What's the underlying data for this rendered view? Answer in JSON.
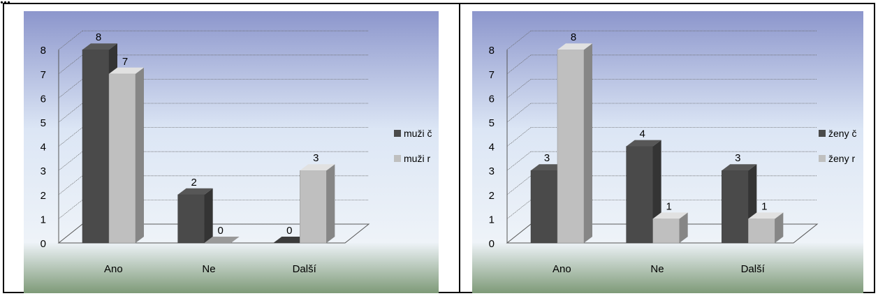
{
  "heading": "...",
  "chart_data": [
    {
      "type": "bar",
      "categories": [
        "Ano",
        "Ne",
        "Další"
      ],
      "series": [
        {
          "name": "muži č",
          "values": [
            8,
            2,
            0
          ],
          "color": "#4a4a4a"
        },
        {
          "name": "muži r",
          "values": [
            7,
            0,
            3
          ],
          "color": "#bfbfbf"
        }
      ],
      "yticks": [
        "0",
        "1",
        "2",
        "3",
        "4",
        "5",
        "6",
        "7",
        "8"
      ],
      "ylim": [
        0,
        8
      ],
      "data_labels": true,
      "grid": true,
      "legend_position": "right",
      "style": "3d-clustered-column",
      "background": [
        "#8c96cc",
        "#dce6f5",
        "#eef3f8",
        "#7e9a78"
      ]
    },
    {
      "type": "bar",
      "categories": [
        "Ano",
        "Ne",
        "Další"
      ],
      "series": [
        {
          "name": "ženy č",
          "values": [
            3,
            4,
            3
          ],
          "color": "#4a4a4a"
        },
        {
          "name": "ženy r",
          "values": [
            8,
            1,
            1
          ],
          "color": "#bfbfbf"
        }
      ],
      "yticks": [
        "0",
        "1",
        "2",
        "3",
        "4",
        "5",
        "6",
        "7",
        "8"
      ],
      "ylim": [
        0,
        8
      ],
      "data_labels": true,
      "grid": true,
      "legend_position": "right",
      "style": "3d-clustered-column",
      "background": [
        "#8c96cc",
        "#dce6f5",
        "#eef3f8",
        "#7e9a78"
      ]
    }
  ]
}
